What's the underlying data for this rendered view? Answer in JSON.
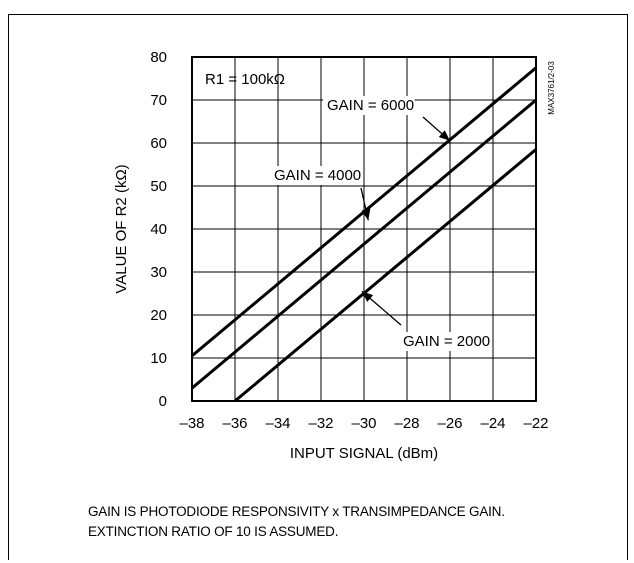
{
  "chart_data": {
    "type": "line",
    "title": "",
    "xlabel": "INPUT SIGNAL (dBm)",
    "ylabel": "VALUE OF R2 (kΩ)",
    "xlim": [
      -38,
      -22
    ],
    "ylim": [
      0,
      80
    ],
    "xticks": [
      -38,
      -36,
      -34,
      -32,
      -30,
      -28,
      -26,
      -24,
      -22
    ],
    "yticks": [
      0,
      10,
      20,
      30,
      40,
      50,
      60,
      70,
      80
    ],
    "grid": true,
    "series": [
      {
        "name": "GAIN = 6000",
        "x": [
          -38,
          -22
        ],
        "y": [
          10.5,
          77.5
        ]
      },
      {
        "name": "GAIN = 4000",
        "x": [
          -38,
          -22
        ],
        "y": [
          3,
          70
        ]
      },
      {
        "name": "GAIN = 2000",
        "x": [
          -36,
          -22
        ],
        "y": [
          0,
          58.5
        ]
      }
    ],
    "annotations": [
      {
        "text": "R1 = 100kΩ"
      },
      {
        "text": "GAIN = 6000",
        "points_to": [
          -26,
          60.5
        ]
      },
      {
        "text": "GAIN = 4000",
        "points_to": [
          -29.8,
          42
        ]
      },
      {
        "text": "GAIN = 2000",
        "points_to": [
          -30.1,
          25.5
        ]
      }
    ],
    "side_code": "MAX3761/2-03"
  },
  "notes": [
    "GAIN IS PHOTODIODE RESPONSIVITY x TRANSIMPEDANCE GAIN.",
    "EXTINCTION RATIO OF 10 IS ASSUMED."
  ]
}
